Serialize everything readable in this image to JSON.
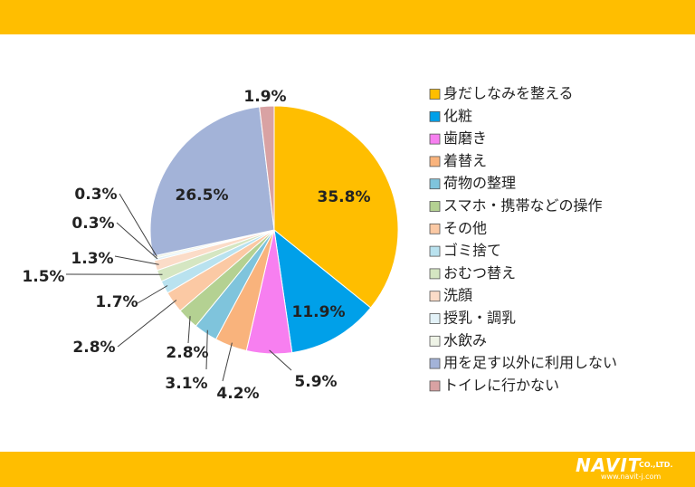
{
  "chart_data": {
    "type": "pie",
    "title": "",
    "categories": [
      "身だしなみを整える",
      "化粧",
      "歯磨き",
      "着替え",
      "荷物の整理",
      "スマホ・携帯などの操作",
      "その他",
      "ゴミ捨て",
      "おむつ替え",
      "洗顔",
      "授乳・調乳",
      "水飲み",
      "用を足す以外に利用しない",
      "トイレに行かない"
    ],
    "values": [
      35.8,
      11.9,
      5.9,
      4.2,
      3.1,
      2.8,
      2.8,
      1.7,
      1.5,
      1.3,
      0.3,
      0.3,
      26.5,
      1.9
    ],
    "labels": [
      "35.8%",
      "11.9%",
      "5.9%",
      "4.2%",
      "3.1%",
      "2.8%",
      "2.8%",
      "1.7%",
      "1.5%",
      "1.3%",
      "0.3%",
      "0.3%",
      "26.5%",
      "1.9%"
    ],
    "colors": [
      "#ffbe00",
      "#00a0e9",
      "#f77ff0",
      "#f9b37c",
      "#7fc4dc",
      "#b4d192",
      "#fbc9a4",
      "#b9e2ef",
      "#d5e6c2",
      "#fbdcc8",
      "#e3f2f8",
      "#eef3e6",
      "#a3b3d8",
      "#d9a2a3"
    ],
    "legend_position": "right"
  },
  "logo": {
    "brand": "NAVIT",
    "suffix": "CO.,LTD.",
    "url": "www.navit-j.com"
  }
}
